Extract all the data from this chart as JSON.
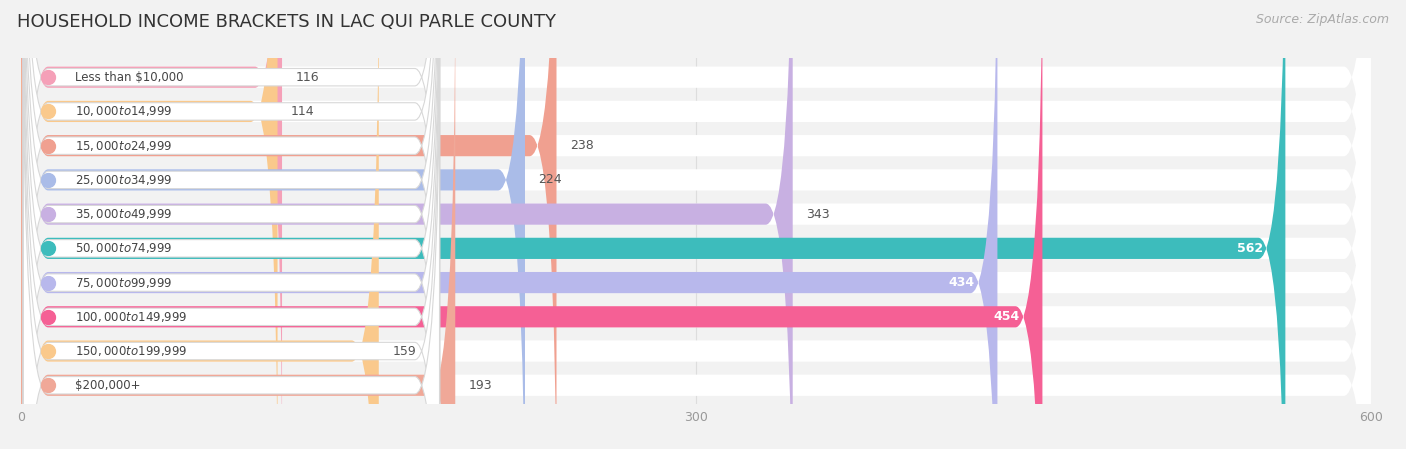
{
  "title": "HOUSEHOLD INCOME BRACKETS IN LAC QUI PARLE COUNTY",
  "source": "Source: ZipAtlas.com",
  "categories": [
    "Less than $10,000",
    "$10,000 to $14,999",
    "$15,000 to $24,999",
    "$25,000 to $34,999",
    "$35,000 to $49,999",
    "$50,000 to $74,999",
    "$75,000 to $99,999",
    "$100,000 to $149,999",
    "$150,000 to $199,999",
    "$200,000+"
  ],
  "values": [
    116,
    114,
    238,
    224,
    343,
    562,
    434,
    454,
    159,
    193
  ],
  "bar_colors": [
    "#f5a0b8",
    "#fac98c",
    "#f0a090",
    "#aabce8",
    "#c8b0e2",
    "#3dbcbc",
    "#b8b8ec",
    "#f56095",
    "#fac98c",
    "#f0a898"
  ],
  "label_colors": [
    "#666666",
    "#666666",
    "#666666",
    "#666666",
    "#666666",
    "#ffffff",
    "#ffffff",
    "#ffffff",
    "#666666",
    "#666666"
  ],
  "xlim": [
    0,
    600
  ],
  "xticks": [
    0,
    300,
    600
  ],
  "background_color": "#f2f2f2",
  "row_bg_color": "#ffffff",
  "title_fontsize": 13,
  "source_fontsize": 9,
  "value_fontsize": 9,
  "tick_fontsize": 9,
  "cat_fontsize": 8.5
}
